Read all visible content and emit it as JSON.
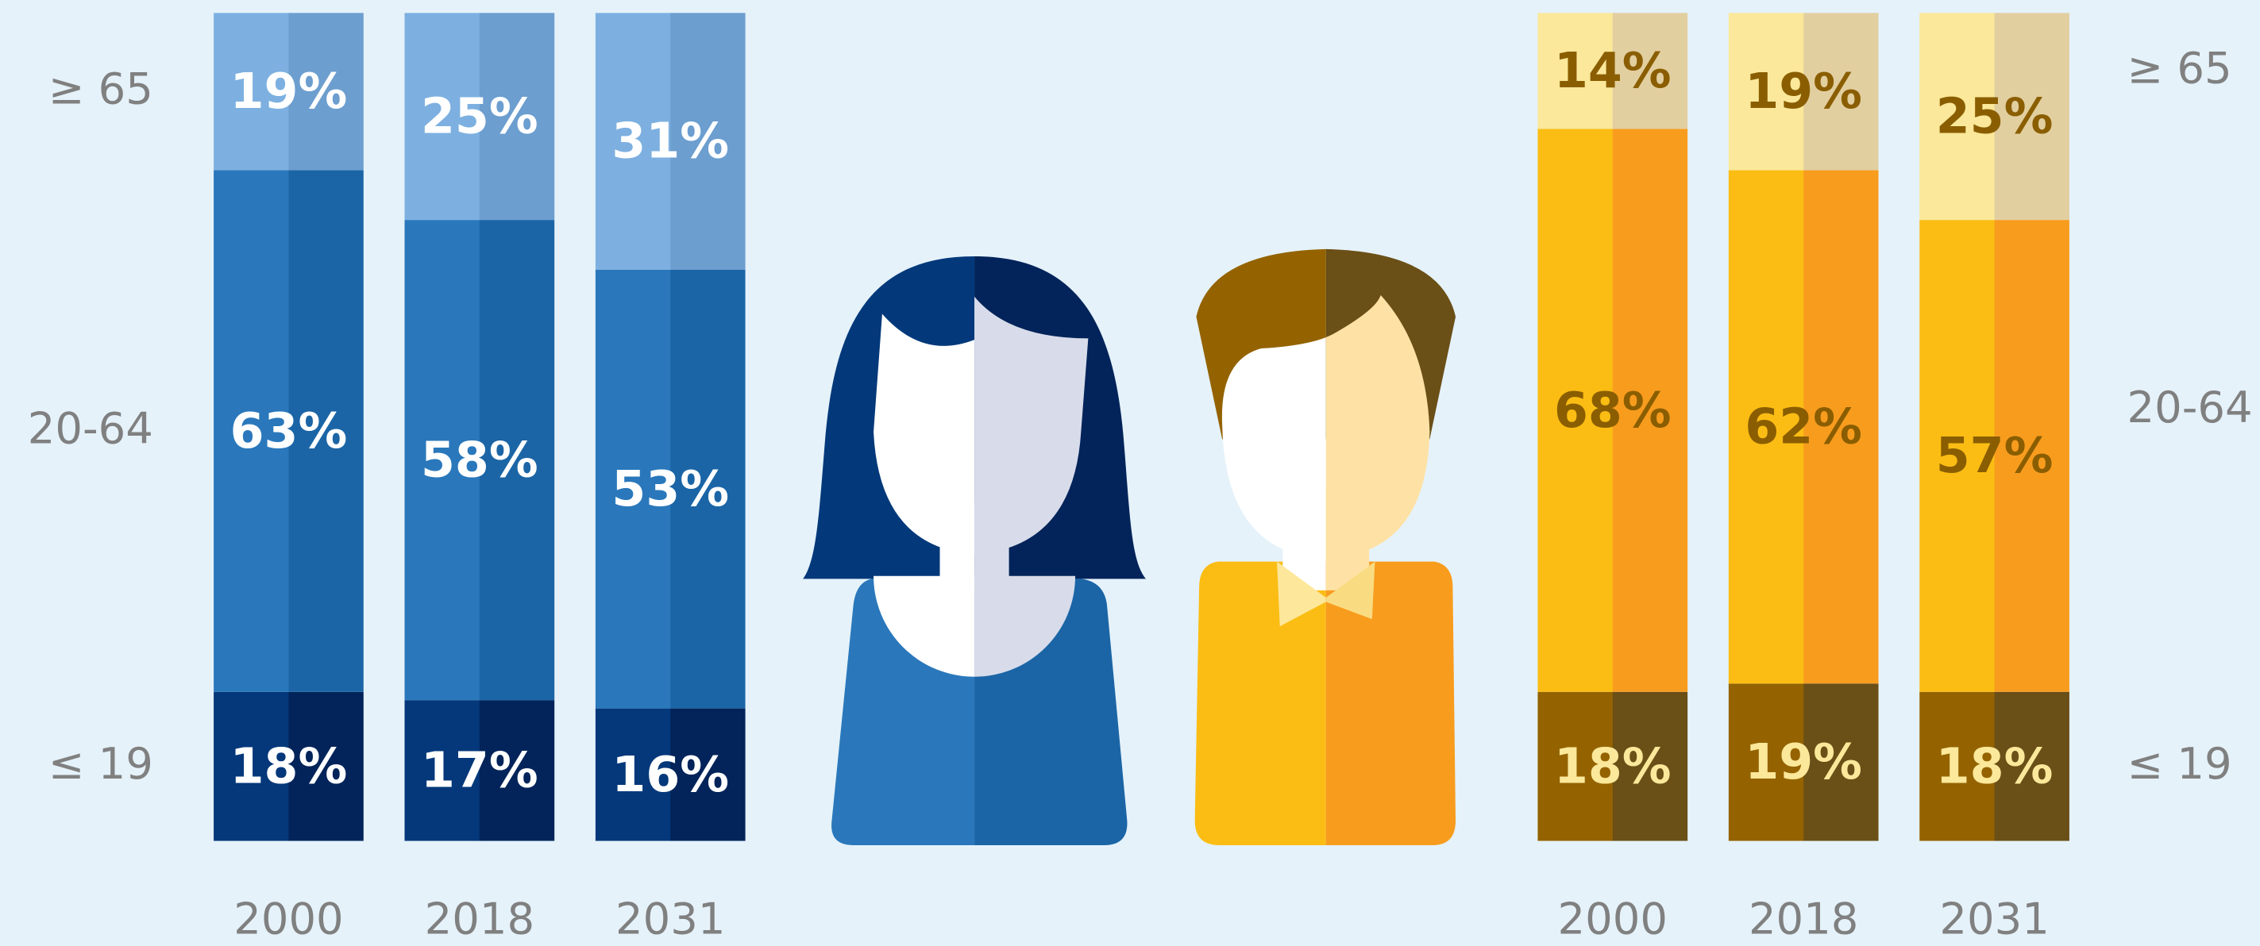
{
  "chart_data": [
    {
      "type": "bar",
      "stacked": true,
      "legend": "left",
      "ylim": [
        0,
        100
      ],
      "categories": [
        "2000",
        "2018",
        "2031"
      ],
      "series": [
        {
          "name": "≤ 19",
          "colors": [
            "#04387a",
            "#02245a"
          ],
          "label_color": "#ffffff",
          "values": [
            18,
            17,
            16
          ],
          "value_labels": [
            "18%",
            "17%",
            "16%"
          ]
        },
        {
          "name": "20-64",
          "colors": [
            "#2a78bb",
            "#1b65a6"
          ],
          "label_color": "#ffffff",
          "values": [
            63,
            58,
            53
          ],
          "value_labels": [
            "63%",
            "58%",
            "53%"
          ]
        },
        {
          "name": "≥ 65",
          "colors": [
            "#7db0e0",
            "#6c9ecf"
          ],
          "label_color": "#ffffff",
          "values": [
            19,
            25,
            31
          ],
          "value_labels": [
            "19%",
            "25%",
            "31%"
          ]
        }
      ]
    },
    {
      "type": "bar",
      "stacked": true,
      "legend": "right",
      "ylim": [
        0,
        100
      ],
      "categories": [
        "2000",
        "2018",
        "2031"
      ],
      "series": [
        {
          "name": "≤ 19",
          "colors": [
            "#946300",
            "#6a4f17"
          ],
          "label_color": "#fbe89a",
          "values": [
            18,
            19,
            18
          ],
          "value_labels": [
            "18%",
            "19%",
            "18%"
          ]
        },
        {
          "name": "20-64",
          "colors": [
            "#fbbd14",
            "#f89c1e"
          ],
          "label_color": "#8a5e00",
          "values": [
            68,
            62,
            57
          ],
          "value_labels": [
            "68%",
            "62%",
            "57%"
          ]
        },
        {
          "name": "≥ 65",
          "colors": [
            "#fbe89a",
            "#e2cfa0"
          ],
          "label_color": "#8a5e00",
          "values": [
            14,
            19,
            25
          ],
          "value_labels": [
            "14%",
            "19%",
            "25%"
          ]
        }
      ]
    }
  ]
}
